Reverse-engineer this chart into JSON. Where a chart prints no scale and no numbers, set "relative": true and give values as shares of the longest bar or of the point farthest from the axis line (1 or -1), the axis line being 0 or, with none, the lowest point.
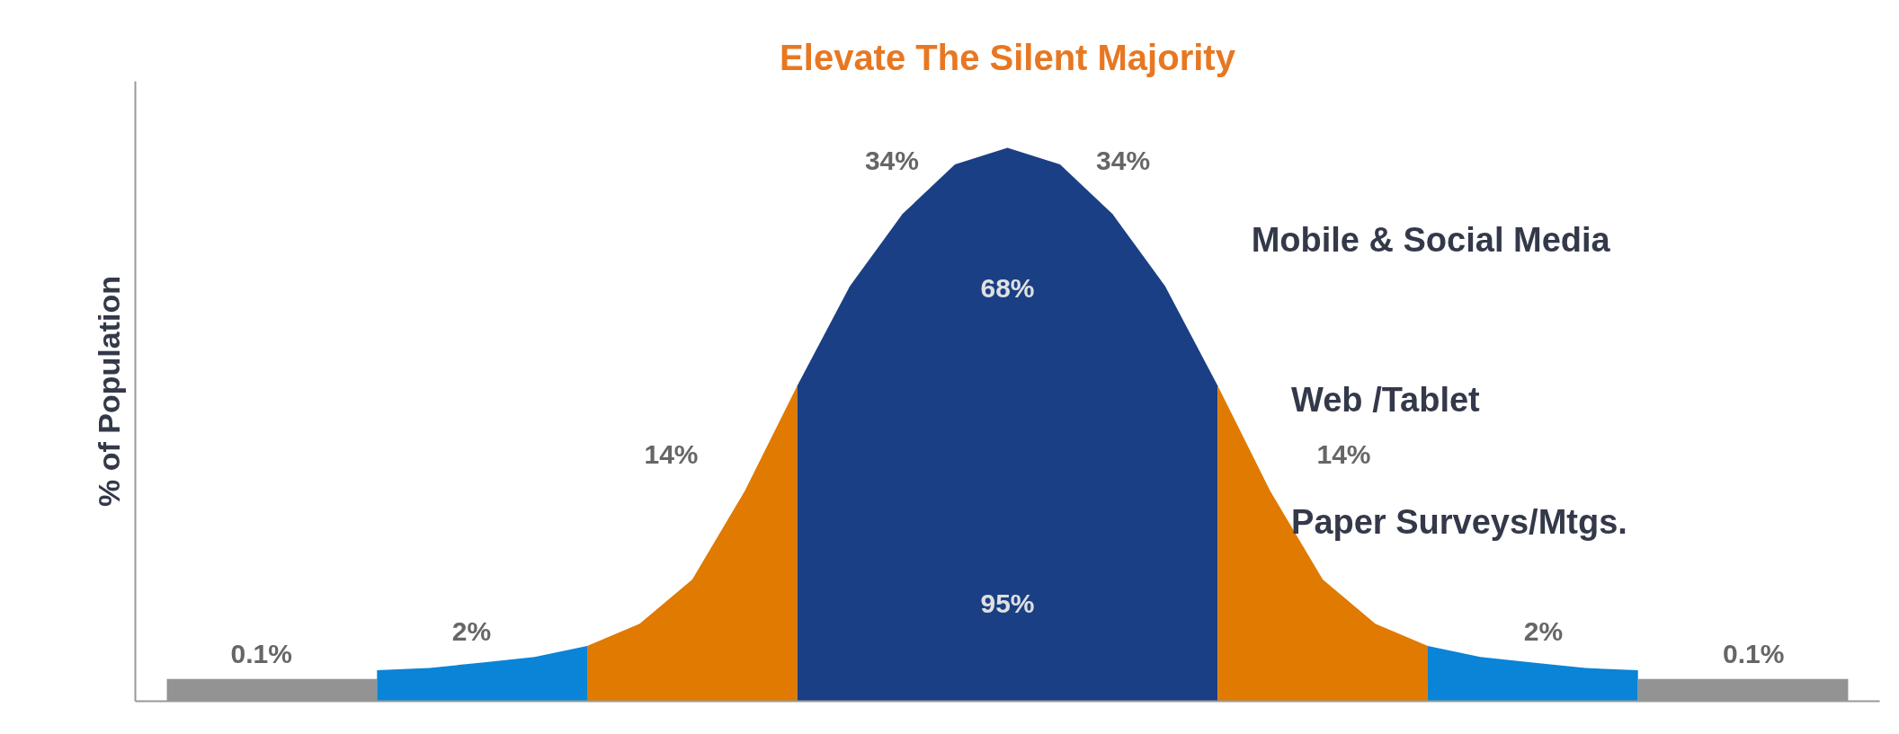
{
  "chart_data": {
    "type": "area",
    "title": "Elevate The Silent Majority",
    "ylabel": "% of Population",
    "relative": true,
    "tick_labels": false,
    "categories": [
      null,
      null,
      null,
      null,
      null,
      null,
      null,
      null,
      null,
      null,
      null,
      null,
      null,
      null,
      null,
      null,
      null,
      null,
      null,
      null,
      null,
      null,
      null,
      null,
      null,
      null,
      null,
      null,
      null,
      null,
      null,
      null,
      null
    ],
    "series": [
      {
        "color": "#939393",
        "values": [
          0.04,
          0.04,
          0.04,
          0.04,
          0.04,
          null,
          null,
          null,
          null,
          null,
          null,
          null,
          null,
          null,
          null,
          null,
          null,
          null,
          null,
          null,
          null,
          null,
          null,
          null,
          null,
          null,
          null,
          null,
          null,
          null,
          null,
          null,
          null
        ]
      },
      {
        "color": "#0a84d6",
        "values": [
          null,
          null,
          null,
          null,
          0.056,
          0.06,
          0.07,
          0.08,
          0.1,
          null,
          null,
          null,
          null,
          null,
          null,
          null,
          null,
          null,
          null,
          null,
          null,
          null,
          null,
          null,
          null,
          null,
          null,
          null,
          null,
          null,
          null,
          null,
          null
        ]
      },
      {
        "color": "#e07a00",
        "values": [
          null,
          null,
          null,
          null,
          null,
          null,
          null,
          null,
          0.1,
          0.14,
          0.22,
          0.38,
          0.57,
          null,
          null,
          null,
          null,
          null,
          null,
          null,
          null,
          null,
          null,
          null,
          null,
          null,
          null,
          null,
          null,
          null,
          null,
          null,
          null
        ]
      },
      {
        "color": "#1a3f84",
        "values": [
          null,
          null,
          null,
          null,
          null,
          null,
          null,
          null,
          null,
          null,
          null,
          null,
          0.57,
          0.75,
          0.88,
          0.97,
          1,
          0.97,
          0.88,
          0.75,
          0.57,
          null,
          null,
          null,
          null,
          null,
          null,
          null,
          null,
          null,
          null,
          null,
          null
        ]
      },
      {
        "color": "#e07a00",
        "values": [
          null,
          null,
          null,
          null,
          null,
          null,
          null,
          null,
          null,
          null,
          null,
          null,
          null,
          null,
          null,
          null,
          null,
          null,
          null,
          null,
          0.57,
          0.38,
          0.22,
          0.14,
          0.1,
          null,
          null,
          null,
          null,
          null,
          null,
          null,
          null
        ]
      },
      {
        "color": "#0a84d6",
        "values": [
          null,
          null,
          null,
          null,
          null,
          null,
          null,
          null,
          null,
          null,
          null,
          null,
          null,
          null,
          null,
          null,
          null,
          null,
          null,
          null,
          null,
          null,
          null,
          null,
          0.1,
          0.08,
          0.07,
          0.06,
          0.056,
          null,
          null,
          null,
          null
        ]
      },
      {
        "color": "#939393",
        "values": [
          null,
          null,
          null,
          null,
          null,
          null,
          null,
          null,
          null,
          null,
          null,
          null,
          null,
          null,
          null,
          null,
          null,
          null,
          null,
          null,
          null,
          null,
          null,
          null,
          null,
          null,
          null,
          null,
          0.04,
          0.04,
          0.04,
          0.04,
          0.04
        ]
      }
    ],
    "annotations": [
      "34%",
      "34%",
      "14%",
      "14%",
      "2%",
      "2%",
      "0.1%",
      "0.1%",
      "68%",
      "95%",
      "Mobile & Social Media",
      "Web /Tablet",
      "Paper Surveys/Mtgs."
    ]
  }
}
